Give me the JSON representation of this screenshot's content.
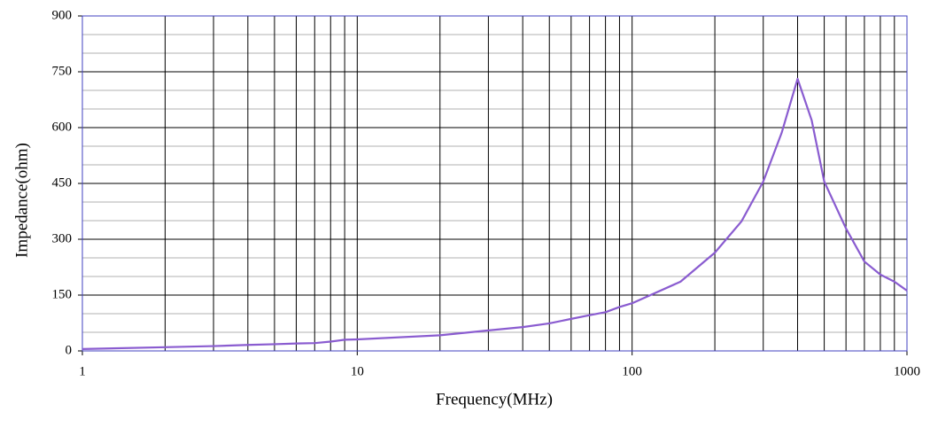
{
  "chart_data": {
    "type": "line",
    "x_label": "Frequency(MHz)",
    "y_label": "Impedance(ohm)",
    "x_scale": "log",
    "xlim": [
      1,
      1000
    ],
    "xticks": [
      1,
      10,
      100,
      1000
    ],
    "x_minor_ticks": [
      2,
      3,
      4,
      5,
      6,
      7,
      8,
      9,
      20,
      30,
      40,
      50,
      60,
      70,
      80,
      90,
      200,
      300,
      400,
      500,
      600,
      700,
      800,
      900
    ],
    "ylim": [
      0,
      900
    ],
    "yticks": [
      0,
      150,
      300,
      450,
      600,
      750,
      900
    ],
    "y_minor_ticks": [
      50,
      100,
      200,
      250,
      350,
      400,
      500,
      550,
      650,
      700,
      800,
      850
    ],
    "grid": true,
    "x": [
      1,
      2,
      3,
      4,
      5,
      6,
      7,
      8,
      9,
      10,
      20,
      30,
      40,
      50,
      60,
      70,
      80,
      90,
      100,
      150,
      200,
      250,
      300,
      350,
      400,
      450,
      500,
      600,
      700,
      800,
      900,
      1000
    ],
    "series": [
      {
        "color": "#8a5cd0",
        "values": [
          5,
          10,
          13,
          16,
          18,
          20,
          21,
          25,
          30,
          31,
          42,
          55,
          64,
          74,
          86,
          96,
          104,
          118,
          128,
          186,
          264,
          348,
          455,
          586,
          731,
          620,
          455,
          329,
          240,
          205,
          186,
          162
        ]
      }
    ]
  }
}
